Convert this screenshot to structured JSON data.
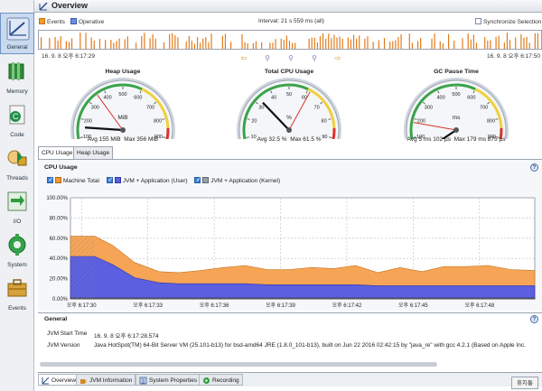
{
  "window": {
    "title": "Overview"
  },
  "sidebar": {
    "items": [
      {
        "label": "General",
        "icon": "speedometer-icon",
        "active": true
      },
      {
        "label": "Memory",
        "icon": "memory-chip-icon"
      },
      {
        "label": "Code",
        "icon": "code-icon"
      },
      {
        "label": "Threads",
        "icon": "threads-icon"
      },
      {
        "label": "I/O",
        "icon": "io-icon"
      },
      {
        "label": "System",
        "icon": "system-gear-icon"
      },
      {
        "label": "Events",
        "icon": "events-briefcase-icon"
      }
    ]
  },
  "timeline": {
    "events_label": "Events",
    "operative_label": "Operative",
    "interval": "Interval: 21 s 559 ms (all)",
    "synchronize_label": "Synchronize Selection",
    "start_time": "16. 9. 8 오후 6:17:29",
    "end_time": "16. 9. 8 오후 6:17:50"
  },
  "gauges": [
    {
      "title": "Heap Usage",
      "unit": "MiB",
      "ticks": [
        "0",
        "100",
        "200",
        "300",
        "400",
        "500",
        "600",
        "700",
        "800",
        "900",
        "1000"
      ],
      "avg": "Avg 155 MiB",
      "max": "Max 356 MiB",
      "value_fraction": 0.155,
      "max_fraction": 0.356
    },
    {
      "title": "Total CPU Usage",
      "unit": "%",
      "ticks": [
        "0",
        "10",
        "20",
        "30",
        "40",
        "50",
        "60",
        "70",
        "80",
        "90",
        "100"
      ],
      "avg": "Avg 32.5 %",
      "max": "Max 61.5 %",
      "value_fraction": 0.325,
      "max_fraction": 0.615
    },
    {
      "title": "GC Pause Time",
      "unit": "ms",
      "ticks": [
        "0",
        "100",
        "200",
        "300",
        "400",
        "500",
        "600",
        "700",
        "800",
        "900",
        "1000"
      ],
      "avg": "Avg 5 ms 102 µs",
      "max": "Max 179 ms 875 µs",
      "value_fraction": 0.005,
      "max_fraction": 0.18
    }
  ],
  "tabs_top": [
    {
      "label": "CPU Usage",
      "active": true
    },
    {
      "label": "Heap Usage",
      "active": false
    }
  ],
  "cpu_panel": {
    "title": "CPU Usage",
    "legend": [
      {
        "label": "Machine Total",
        "color": "#f19a30"
      },
      {
        "label": "JVM + Application (User)",
        "color": "#5b5fe0"
      },
      {
        "label": "JVM + Application (Kernel)",
        "color": "#9aa0aa"
      }
    ]
  },
  "chart_data": {
    "type": "area",
    "title": "",
    "xlabel": "",
    "ylabel": "",
    "y_ticks": [
      "0.00%",
      "20.00%",
      "40.00%",
      "60.00%",
      "80.00%",
      "100.00%"
    ],
    "ylim": [
      0,
      100
    ],
    "x_ticks": [
      "오후 6:17:30",
      "오후 6:17:33",
      "오후 6:17:36",
      "오후 6:17:39",
      "오후 6:17:42",
      "오후 6:17:45",
      "오후 6:17:48"
    ],
    "x_seconds": [
      29.5,
      30.6,
      31.4,
      32.4,
      33.5,
      34.4,
      35.4,
      36.4,
      37.4,
      38.4,
      39.4,
      40.4,
      41.4,
      42.4,
      43.4,
      44.4,
      45.4,
      46.4,
      47.4,
      48.4,
      49.4,
      50.5
    ],
    "series": [
      {
        "name": "Machine Total",
        "values": [
          62,
          62,
          53,
          36,
          27,
          26,
          28,
          31,
          33,
          29,
          29,
          31,
          30,
          33,
          26,
          31,
          27,
          32,
          32,
          33,
          29,
          28
        ]
      },
      {
        "name": "JVM + Application (User)",
        "values": [
          42,
          42,
          34,
          21,
          16,
          15,
          15,
          15,
          15,
          14,
          14,
          14,
          14,
          14,
          13,
          13,
          13,
          13,
          13,
          13,
          13,
          13
        ]
      },
      {
        "name": "JVM + Application (Kernel)",
        "values": [
          1,
          1,
          1,
          1,
          1,
          1,
          1,
          1,
          1,
          1,
          1,
          1,
          1,
          1,
          1,
          1,
          1,
          1,
          1,
          1,
          1,
          1
        ]
      }
    ]
  },
  "general": {
    "title": "General",
    "rows": [
      {
        "label": "JVM Start Time",
        "value": "16. 9. 8 오후 6:17:28.574"
      },
      {
        "label": "JVM Version",
        "value": "Java HotSpot(TM) 64-Bit Server VM (25.101-b13) for bsd-amd64 JRE (1.8.0_101-b13), built on Jun 22 2016 02:42:15 by \"java_re\" with gcc 4.2.1 (Based on Apple Inc."
      }
    ]
  },
  "bottom_tabs": [
    {
      "label": "Overview",
      "active": true
    },
    {
      "label": "JVM Information",
      "active": false
    },
    {
      "label": "System Properties",
      "active": false
    },
    {
      "label": "Recording",
      "active": false
    }
  ],
  "trash_label": "휴지통",
  "help_glyph": "?"
}
